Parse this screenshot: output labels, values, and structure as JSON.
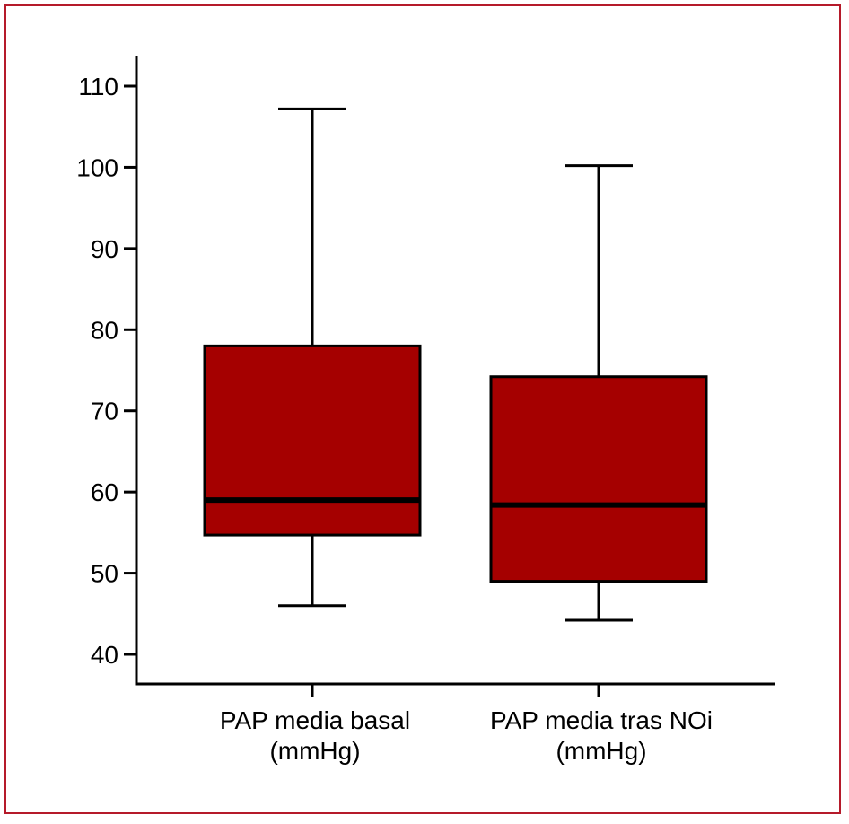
{
  "chart_data": {
    "type": "boxplot",
    "y_ticks": [
      40,
      50,
      60,
      70,
      80,
      90,
      100,
      110
    ],
    "ylim": [
      38,
      113
    ],
    "categories": [
      {
        "label_lines": [
          "PAP media basal",
          "(mmHg)"
        ]
      },
      {
        "label_lines": [
          "PAP media tras NOi",
          "(mmHg)"
        ]
      }
    ],
    "boxes": [
      {
        "min": 46,
        "q1": 54.7,
        "median": 59,
        "q3": 78,
        "max": 107.2
      },
      {
        "min": 44.2,
        "q1": 49,
        "median": 58.4,
        "q3": 74.2,
        "max": 100.2
      }
    ],
    "colors": {
      "box_fill": "#a50000",
      "stroke": "#000000",
      "frame": "#b51a2a"
    }
  }
}
